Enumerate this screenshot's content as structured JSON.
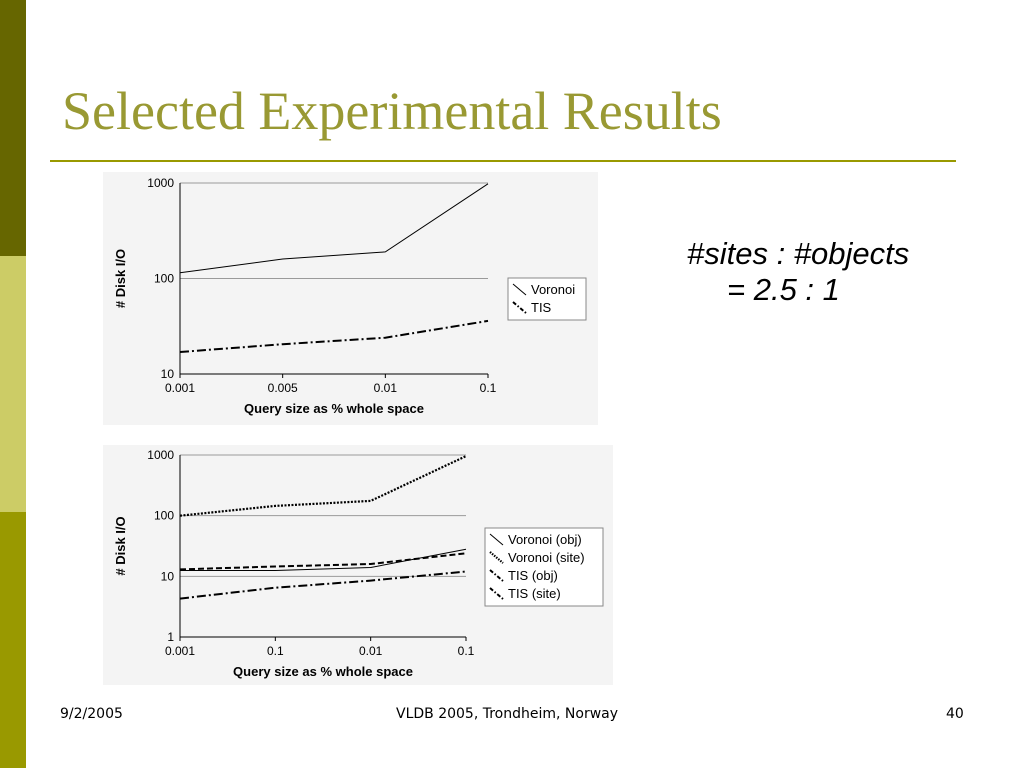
{
  "slide": {
    "title": "Selected Experimental Results",
    "note_line1": "#sites : #objects",
    "note_line2": "= 2.5 : 1",
    "footer_date": "9/2/2005",
    "footer_center": "VLDB 2005, Trondheim, Norway",
    "footer_page": "40"
  },
  "colors": {
    "title": "#999933",
    "sidebar_dark": "#666600",
    "sidebar_light": "#cccc66",
    "sidebar_olive": "#999900",
    "rule": "#999900"
  },
  "chart_data": [
    {
      "type": "line",
      "xlabel": "Query size as % whole space",
      "ylabel": "# Disk I/O",
      "yscale": "log",
      "ylim": [
        10,
        1000
      ],
      "yticks": [
        "10",
        "100",
        "1000"
      ],
      "categories": [
        "0.001",
        "0.005",
        "0.01",
        "0.1"
      ],
      "grid": true,
      "legend_position": "right",
      "series": [
        {
          "name": "Voronoi",
          "style": "solid",
          "values": [
            115,
            160,
            190,
            980
          ]
        },
        {
          "name": "TIS",
          "style": "dash-dot",
          "values": [
            17,
            20.5,
            24,
            36
          ]
        }
      ]
    },
    {
      "type": "line",
      "xlabel": "Query size as % whole space",
      "ylabel": "# Disk I/O",
      "yscale": "log",
      "ylim": [
        1,
        1000
      ],
      "yticks": [
        "1",
        "10",
        "100",
        "1000"
      ],
      "categories": [
        "0.001",
        "0.1",
        "0.01",
        "0.1"
      ],
      "grid": true,
      "legend_position": "right",
      "series": [
        {
          "name": "Voronoi (obj)",
          "style": "solid",
          "values": [
            12.5,
            12.5,
            14,
            28
          ]
        },
        {
          "name": "Voronoi (site)",
          "style": "dotted",
          "values": [
            100,
            145,
            175,
            960
          ]
        },
        {
          "name": "TIS (obj)",
          "style": "dash-dot",
          "values": [
            4.3,
            6.5,
            8.5,
            12
          ]
        },
        {
          "name": "TIS (site)",
          "style": "dashed",
          "values": [
            13,
            14.5,
            16,
            24
          ]
        }
      ]
    }
  ]
}
